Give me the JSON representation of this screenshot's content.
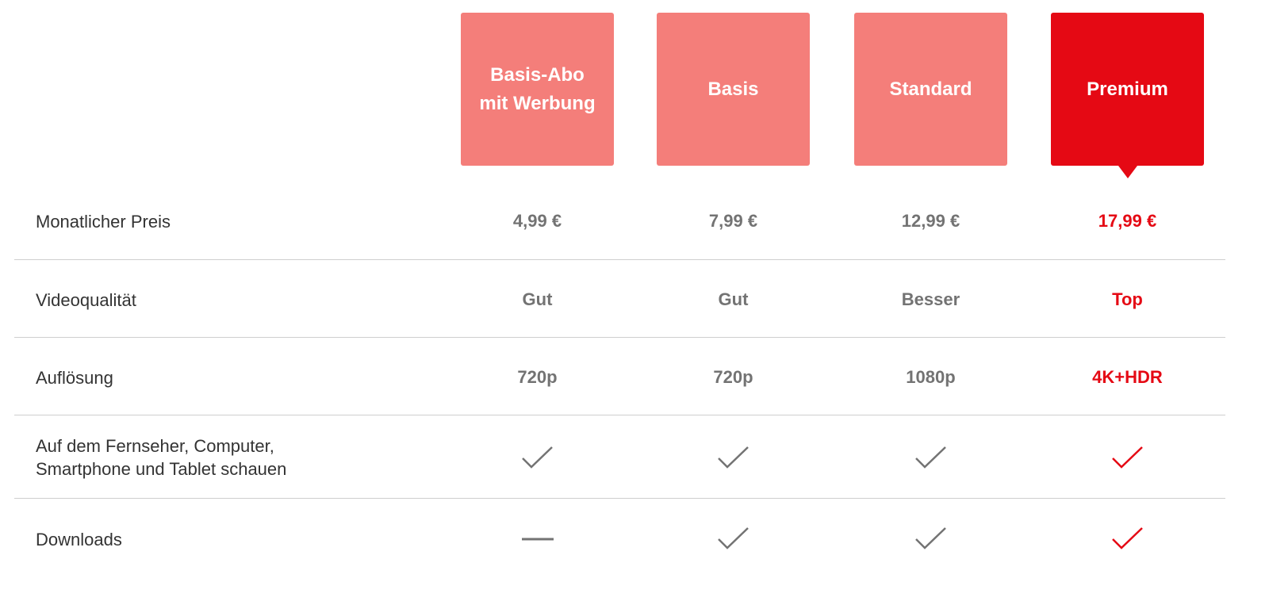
{
  "plans": [
    {
      "name": "Basis-Abo mit Werbung",
      "selected": false
    },
    {
      "name": "Basis",
      "selected": false
    },
    {
      "name": "Standard",
      "selected": false
    },
    {
      "name": "Premium",
      "selected": true
    }
  ],
  "rows": [
    {
      "label": "Monatlicher Preis",
      "values": [
        "4,99 €",
        "7,99 €",
        "12,99 €",
        "17,99 €"
      ]
    },
    {
      "label": "Videoqualität",
      "values": [
        "Gut",
        "Gut",
        "Besser",
        "Top"
      ]
    },
    {
      "label": "Auflösung",
      "values": [
        "720p",
        "720p",
        "1080p",
        "4K+HDR"
      ]
    },
    {
      "label": "Auf dem Fernseher, Computer, Smartphone und Tablet schauen",
      "marks": [
        "check",
        "check",
        "check",
        "check"
      ]
    },
    {
      "label": "Downloads",
      "marks": [
        "dash",
        "check",
        "check",
        "check"
      ]
    }
  ],
  "colors": {
    "accent": "#e50914",
    "card": "#f47e7a",
    "value": "#737373"
  }
}
